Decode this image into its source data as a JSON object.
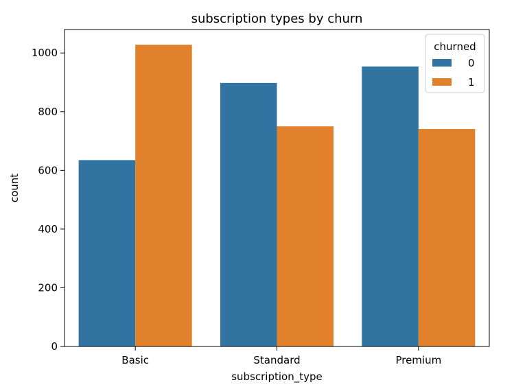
{
  "chart_data": {
    "type": "bar",
    "title": "subscription types by churn",
    "xlabel": "subscription_type",
    "ylabel": "count",
    "categories": [
      "Basic",
      "Standard",
      "Premium"
    ],
    "series": [
      {
        "name": "0",
        "values": [
          635,
          898,
          954
        ],
        "color": "#3274a1"
      },
      {
        "name": "1",
        "values": [
          1028,
          750,
          741
        ],
        "color": "#e1812c"
      }
    ],
    "ylim": [
      0,
      1080
    ],
    "yticks": [
      0,
      200,
      400,
      600,
      800,
      1000
    ],
    "legend": {
      "title": "churned",
      "placement": "top-right"
    },
    "grid": false
  }
}
